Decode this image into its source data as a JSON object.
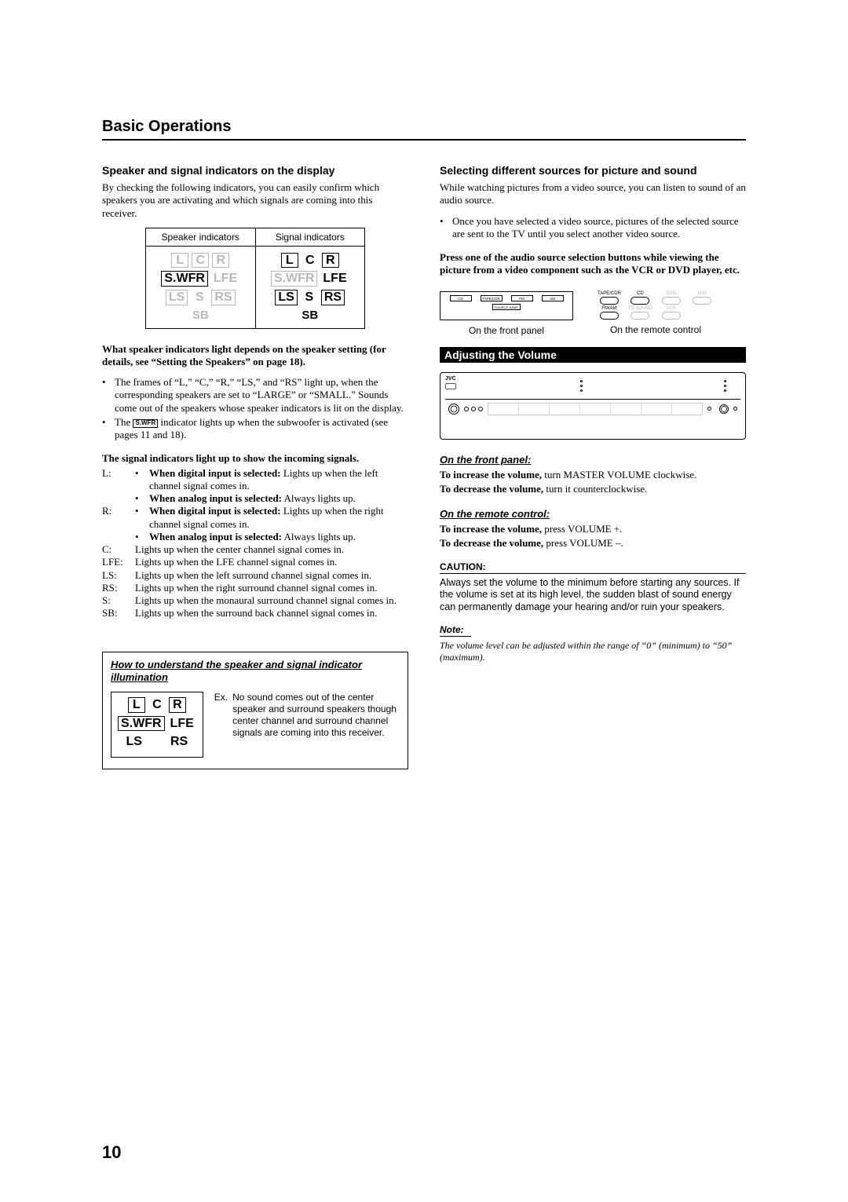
{
  "title": "Basic Operations",
  "page_number": "10",
  "left": {
    "h_speaker": "Speaker and signal indicators on the display",
    "intro": "By checking the following indicators, you can easily confirm which speakers you are activating and which signals are coming into this receiver.",
    "ind_head_left": "Speaker indicators",
    "ind_head_right": "Signal indicators",
    "cells": {
      "L": "L",
      "C": "C",
      "R": "R",
      "SWFR": "S.WFR",
      "LFE": "LFE",
      "LS": "LS",
      "S": "S",
      "RS": "RS",
      "SB": "SB"
    },
    "what_depends": "What speaker indicators light depends on the speaker setting (for details, see “Setting the Speakers” on page 18).",
    "bullet1": "The frames of “L,” “C,” “R,” “LS,” and “RS” light up, when the corresponding speakers are set to “LARGE” or “SMALL.” Sounds come out of the speakers whose speaker indicators is lit on the display.",
    "bullet2a": "The ",
    "bullet2_box": "S.WFR",
    "bullet2b": " indicator lights up when the subwoofer is activated (see pages 11 and 18).",
    "sig_title": "The signal indicators light up to show the incoming signals.",
    "defs": {
      "L_d": "When digital input is selected:",
      "L_dt": " Lights up when the left channel signal comes in.",
      "L_a": "When analog input is selected:",
      "L_at": " Always lights up.",
      "R_d": "When digital input is selected:",
      "R_dt": " Lights up when the right channel signal comes in.",
      "R_a": "When analog input is selected:",
      "R_at": " Always lights up.",
      "C": "Lights up when the center channel signal comes in.",
      "LFE": "Lights up when the LFE channel signal comes in.",
      "LS": "Lights up when the left surround channel signal comes in.",
      "RS": "Lights up when the right surround channel signal comes in.",
      "S": "Lights up when the monaural surround channel signal comes in.",
      "SB": "Lights up when the surround back channel signal comes in."
    },
    "howto_title": "How to understand the speaker and signal indicator illumination",
    "howto_ex_label": "Ex.",
    "howto_ex_text": "No sound comes out of the center speaker and surround speakers though center channel and surround channel signals are coming into this receiver."
  },
  "right": {
    "h_select": "Selecting different sources for picture and sound",
    "select_p1": "While watching pictures from a video source, you can listen to sound of an audio source.",
    "select_b1": "Once you have selected a video source, pictures of the selected source are sent to the TV until you select another video source.",
    "select_press": "Press one of the audio source selection buttons while viewing the picture from a video component such as the VCR or DVD player, etc.",
    "panel": {
      "btns": [
        "CD",
        "TAPE/CDR",
        "FM",
        "AM"
      ],
      "source_name": "SOURCE NAME",
      "caption": "On the front panel"
    },
    "remote": {
      "labels": [
        "TAPE/CDR",
        "CD",
        "DVD",
        "AUX",
        "FM/AM",
        "TV SOUND",
        "VCR"
      ],
      "dim": [
        false,
        false,
        true,
        true,
        false,
        true,
        true
      ],
      "caption": "On the remote control"
    },
    "h_volume": "Adjusting the Volume",
    "receiver_brand": "JVC",
    "fp_title": "On the front panel:",
    "fp_inc_b": "To increase the volume,",
    "fp_inc_t": " turn MASTER VOLUME clockwise.",
    "fp_dec_b": "To decrease the volume,",
    "fp_dec_t": " turn it counterclockwise.",
    "rc_title": "On the remote control:",
    "rc_inc_b": "To increase the volume,",
    "rc_inc_t": " press VOLUME +.",
    "rc_dec_b": "To decrease the volume,",
    "rc_dec_t": " press VOLUME –.",
    "caution_hd": "CAUTION:",
    "caution_txt": "Always set the volume to the minimum before starting any sources. If the volume is set at its high level, the sudden blast of sound energy can permanently damage your hearing and/or ruin your speakers.",
    "note_hd": "Note:",
    "note_txt": "The volume level can be adjusted within the range of “0” (minimum) to “50” (maximum)."
  }
}
